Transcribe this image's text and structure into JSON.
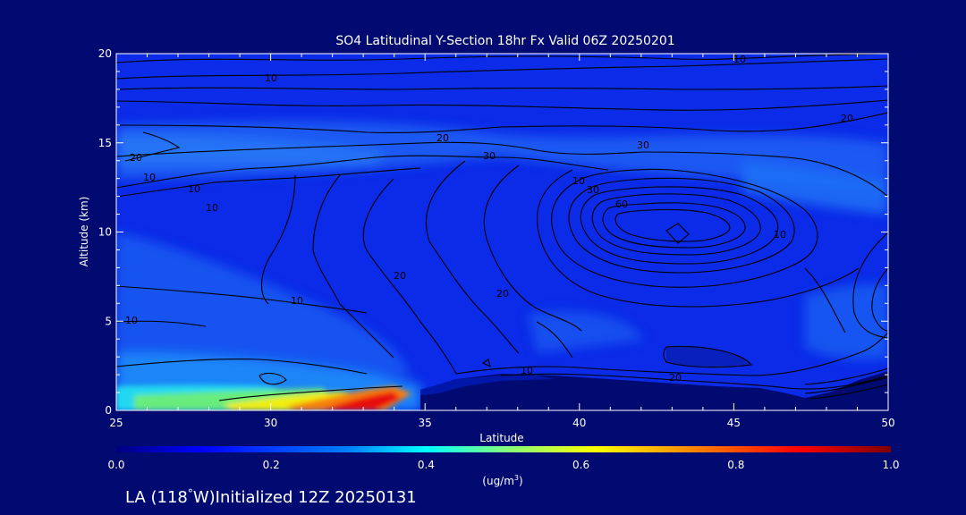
{
  "chart_data": {
    "type": "heatmap",
    "title": "SO4 Latitudinal Y-Section 18hr  Fx Valid 06Z 20250201",
    "xlabel": "Latitude",
    "ylabel": "Altitude (km)",
    "xlim": [
      25,
      50
    ],
    "ylim": [
      0,
      20
    ],
    "x_ticks": [
      "25",
      "30",
      "35",
      "40",
      "45",
      "50"
    ],
    "y_ticks": [
      "0",
      "5",
      "10",
      "15",
      "20"
    ],
    "colorbar": {
      "min": 0.0,
      "max": 1.0,
      "ticks": [
        "0.0",
        "0.2",
        "0.4",
        "0.6",
        "0.8",
        "1.0"
      ],
      "unit_label": "(ug/m",
      "unit_sup": "3",
      "unit_close": ")"
    },
    "concentration_features": [
      {
        "lat": [
          26,
          34.5
        ],
        "alt": [
          0,
          1
        ],
        "max_value": 1.0
      },
      {
        "lat": [
          25,
          35
        ],
        "alt": [
          0,
          2.5
        ],
        "max_value": 0.35
      },
      {
        "lat": [
          25,
          50
        ],
        "alt": [
          13,
          16
        ],
        "max_value": 0.3
      },
      {
        "lat": [
          25,
          32
        ],
        "alt": [
          3,
          9
        ],
        "max_value": 0.25
      },
      {
        "lat": [
          48,
          50
        ],
        "alt": [
          10,
          12
        ],
        "max_value": 0.3
      }
    ],
    "contour_labels": [
      "10",
      "20",
      "30",
      "10",
      "20",
      "30",
      "10",
      "20",
      "60",
      "10",
      "20",
      "10",
      "30",
      "10",
      "10",
      "20",
      "10",
      "20",
      "10",
      "10"
    ]
  },
  "footer": {
    "prefix": "LA (118",
    "degree": "°",
    "suffix": "W)Initialized 12Z 20250131"
  },
  "colors": {
    "background": "#000a70",
    "base_fill": "#0b2be8",
    "colormap": [
      "#000080",
      "#0000ff",
      "#0080ff",
      "#00ffff",
      "#80ff80",
      "#ffff00",
      "#ff8000",
      "#ff0000",
      "#800000"
    ]
  }
}
